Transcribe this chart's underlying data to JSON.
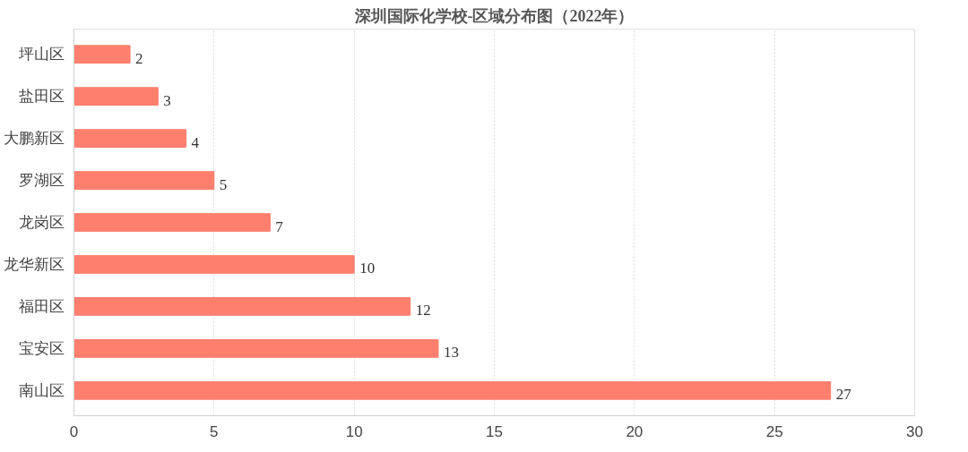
{
  "chart_data": {
    "type": "bar",
    "orientation": "horizontal",
    "title": "深圳国际化学校-区域分布图（2022年）",
    "categories": [
      "坪山区",
      "盐田区",
      "大鹏新区",
      "罗湖区",
      "龙岗区",
      "龙华新区",
      "福田区",
      "宝安区",
      "南山区"
    ],
    "values": [
      2,
      3,
      4,
      5,
      7,
      10,
      12,
      13,
      27
    ],
    "color": "#ff7f6e",
    "xlim": [
      0,
      30
    ],
    "xticks": [
      0,
      5,
      10,
      15,
      20,
      25,
      30
    ],
    "grid": "x",
    "data_labels": true
  }
}
